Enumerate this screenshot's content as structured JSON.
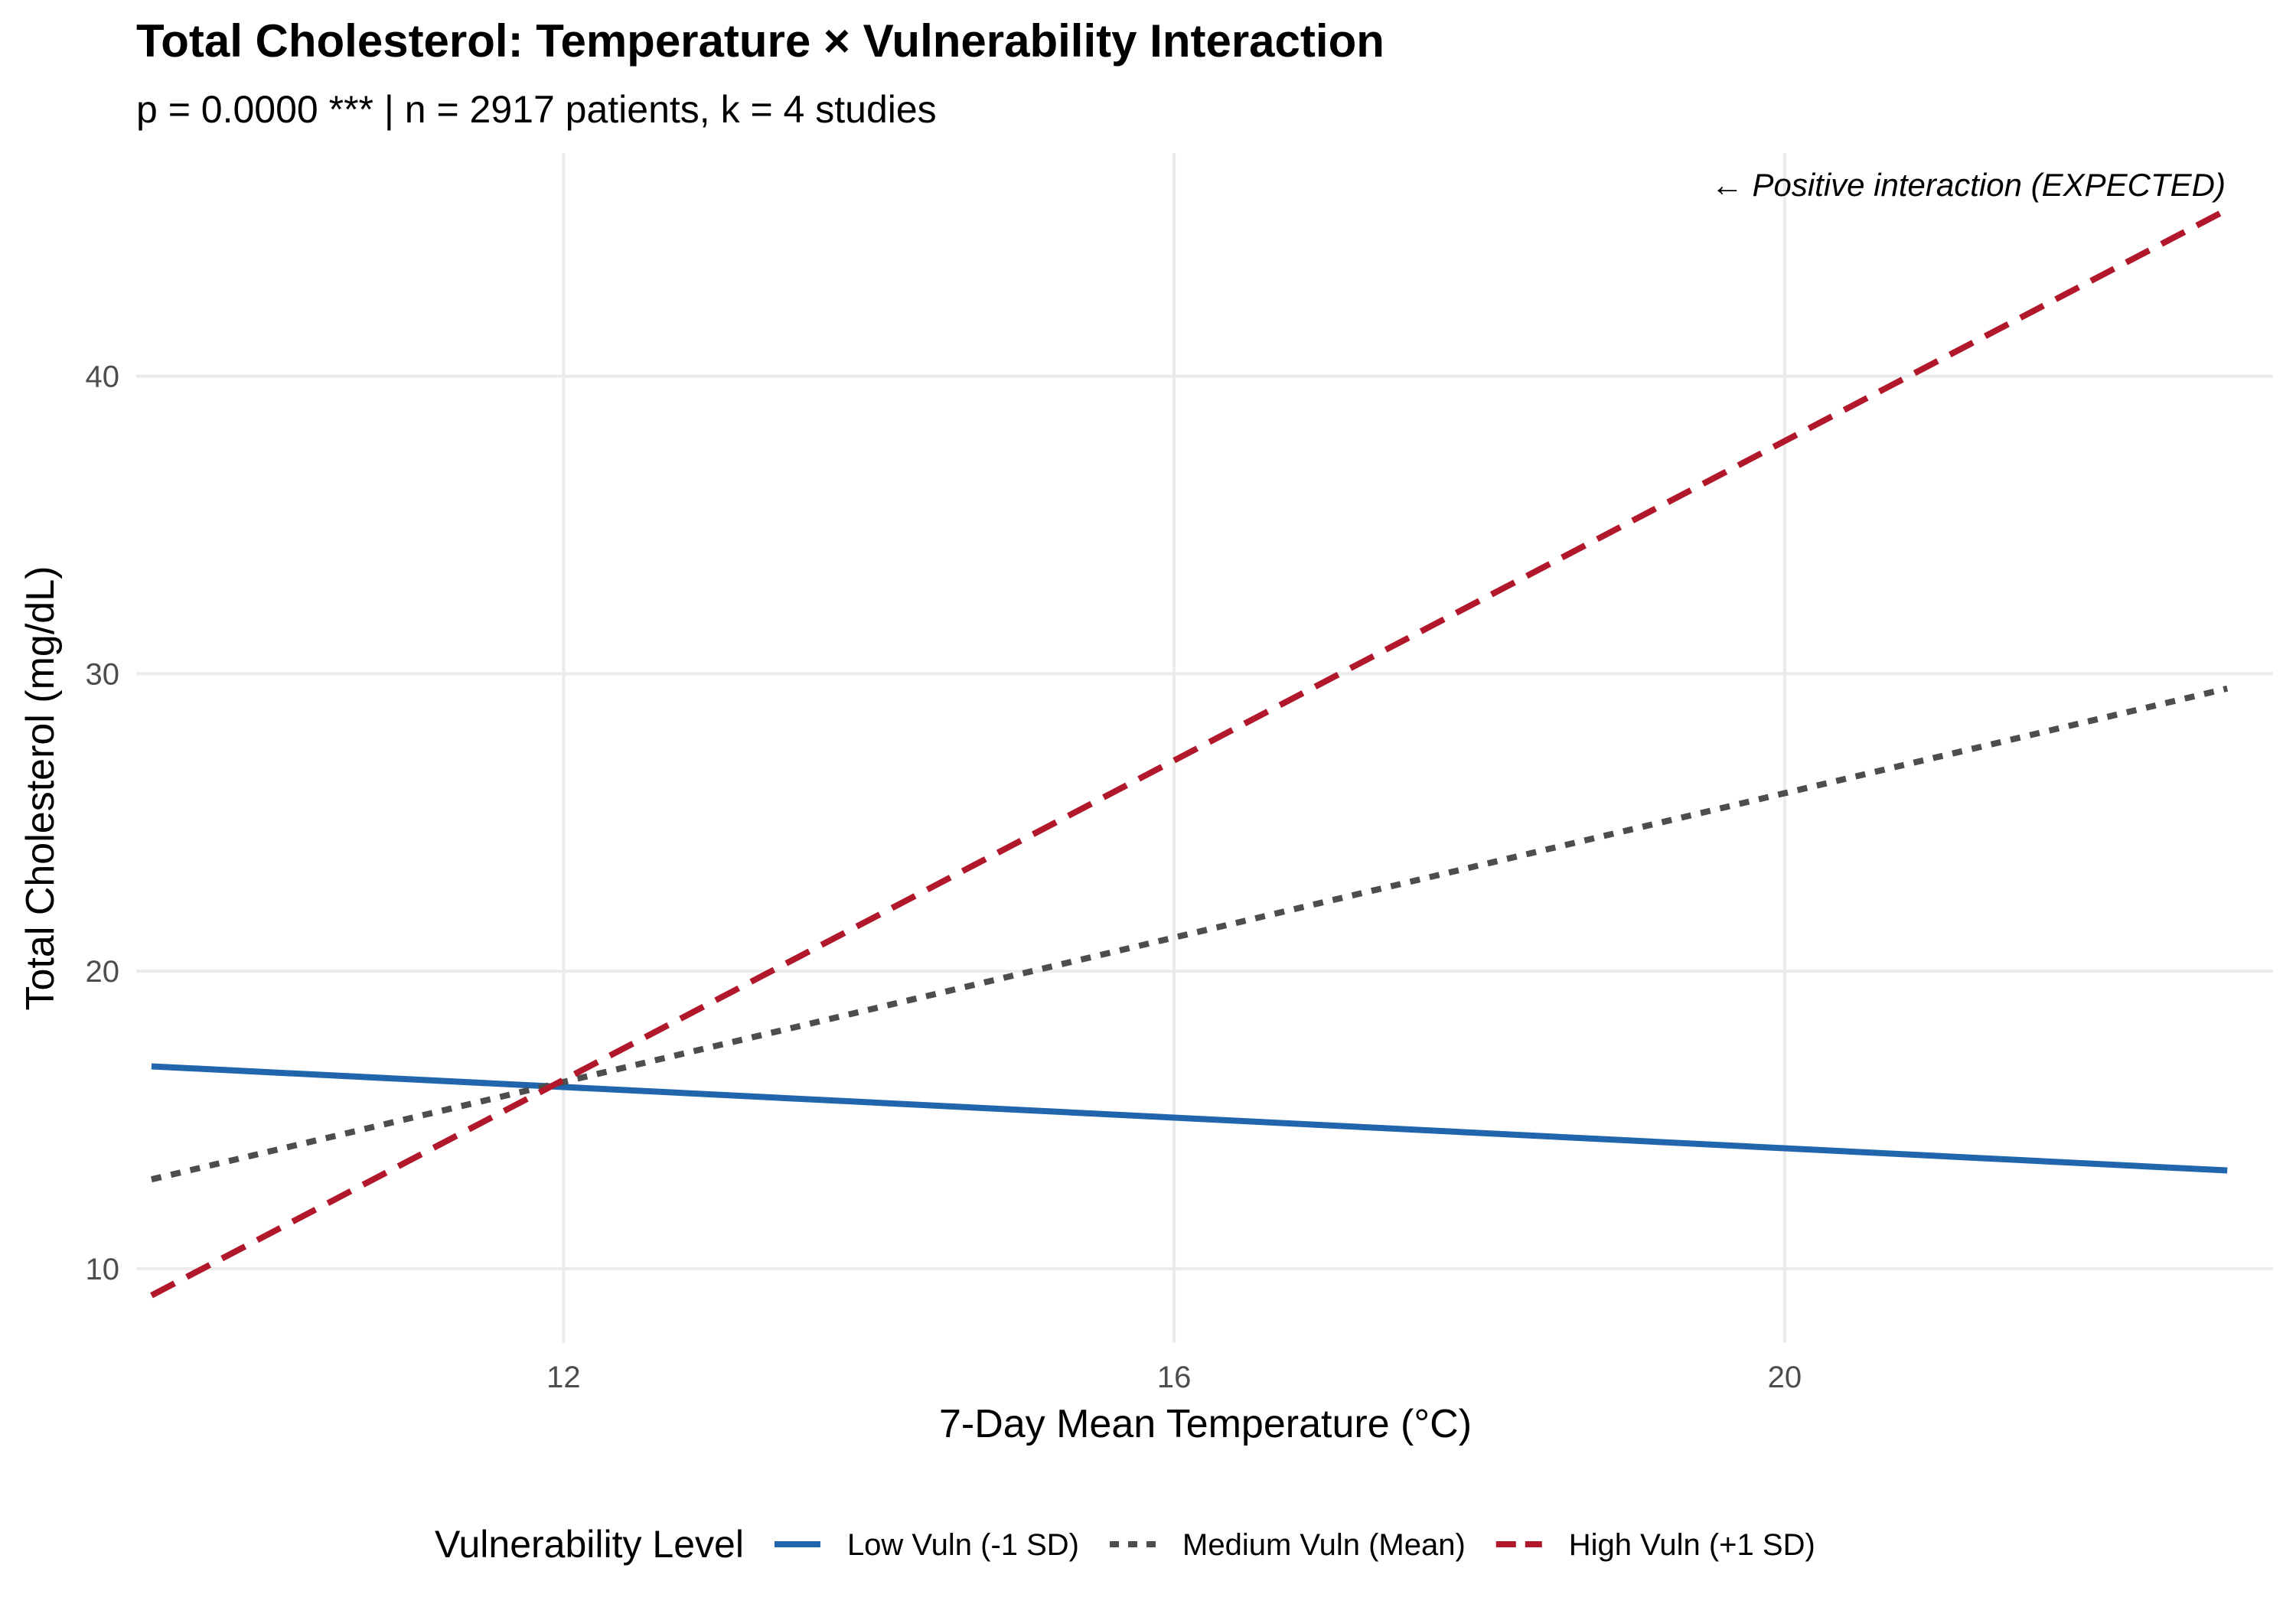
{
  "chart_data": {
    "type": "line",
    "title": "Total Cholesterol: Temperature × Vulnerability Interaction",
    "subtitle": "p = 0.0000 *** | n = 2917 patients, k = 4 studies",
    "xlabel": "7-Day Mean Temperature (°C)",
    "ylabel": "Total Cholesterol (mg/dL)",
    "xlim": [
      9.2,
      23.2
    ],
    "ylim": [
      7.5,
      47.5
    ],
    "x_ticks": [
      12,
      16,
      20
    ],
    "y_ticks": [
      10,
      20,
      30,
      40
    ],
    "grid": true,
    "annotation": "← Positive interaction (EXPECTED)",
    "legend": {
      "title": "Vulnerability Level",
      "position": "bottom"
    },
    "series": [
      {
        "name": "Low Vuln (-1 SD)",
        "color": "#2166ac",
        "linestyle": "solid",
        "x": [
          9.3,
          22.9
        ],
        "y": [
          16.8,
          13.3
        ]
      },
      {
        "name": "Medium Vuln (Mean)",
        "color": "#4d4d4d",
        "linestyle": "dotted",
        "x": [
          9.3,
          22.9
        ],
        "y": [
          13.0,
          29.5
        ]
      },
      {
        "name": "High Vuln (+1 SD)",
        "color": "#b2182b",
        "linestyle": "dashed",
        "x": [
          9.3,
          22.9
        ],
        "y": [
          9.1,
          45.6
        ]
      }
    ]
  }
}
